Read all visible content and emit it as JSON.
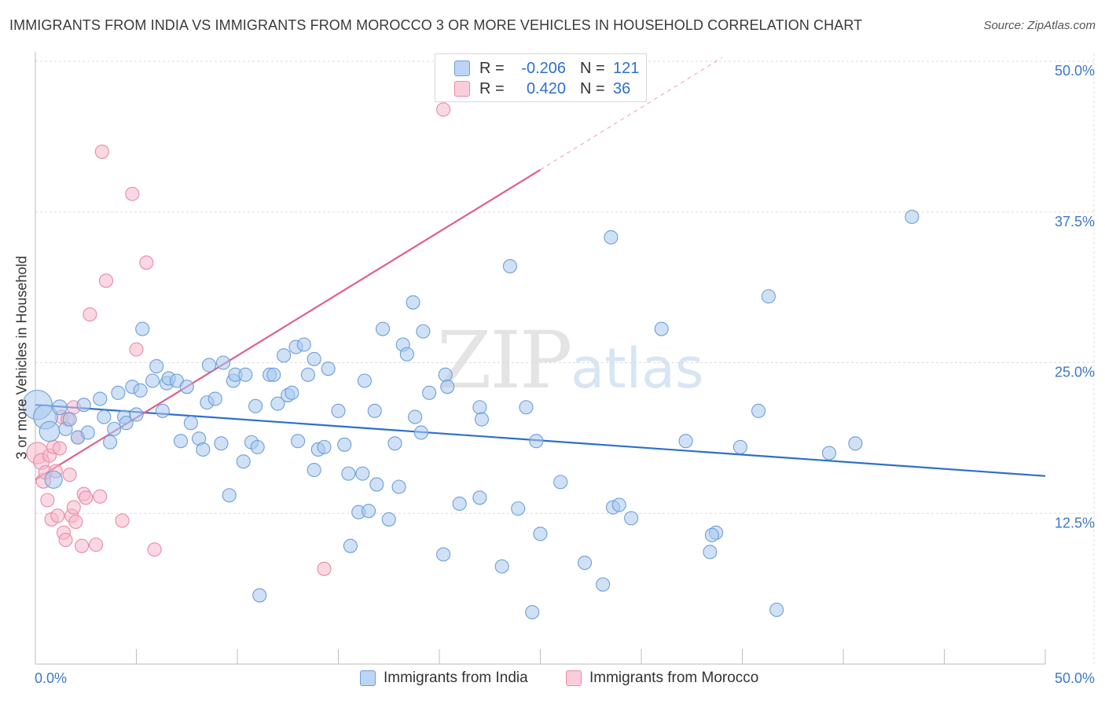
{
  "header": {
    "title": "IMMIGRANTS FROM INDIA VS IMMIGRANTS FROM MOROCCO 3 OR MORE VEHICLES IN HOUSEHOLD CORRELATION CHART",
    "source": "Source: ZipAtlas.com"
  },
  "legend": {
    "india": {
      "r_label": "R =",
      "r_value": "-0.206",
      "n_label": "N =",
      "n_value": "121"
    },
    "morocco": {
      "r_label": "R =",
      "r_value": "0.420",
      "n_label": "N =",
      "n_value": "36"
    }
  },
  "bottom_legend": {
    "india": "Immigrants from India",
    "morocco": "Immigrants from Morocco"
  },
  "watermark": {
    "part1": "ZIP",
    "part2": "atlas"
  },
  "colors": {
    "india_fill": "#a9c8ee",
    "india_stroke": "#6b9fd8",
    "india_line": "#2d6fcc",
    "morocco_fill": "#f6b8cb",
    "morocco_stroke": "#e98aa8",
    "morocco_line": "#e0608a",
    "axis_label": "#3d78c9",
    "grid": "#dcdcdc"
  },
  "chart_data": {
    "type": "scatter",
    "title": "IMMIGRANTS FROM INDIA VS IMMIGRANTS FROM MOROCCO 3 OR MORE VEHICLES IN HOUSEHOLD CORRELATION CHART",
    "xlabel": "",
    "ylabel": "3 or more Vehicles in Household",
    "xlim": [
      0,
      50
    ],
    "ylim": [
      0,
      50
    ],
    "x_tick_labels": [
      "0.0%",
      "50.0%"
    ],
    "y_ticks": [
      12.5,
      25.0,
      37.5,
      50.0
    ],
    "y_tick_labels": [
      "12.5%",
      "25.0%",
      "37.5%",
      "50.0%"
    ],
    "grid": true,
    "legend_position": "top-center",
    "series": [
      {
        "name": "Immigrants from India",
        "r": -0.206,
        "n": 121,
        "trend": {
          "x": [
            0,
            50
          ],
          "y": [
            21.5,
            15.6
          ]
        },
        "points": [
          [
            0.1,
            21.5,
            2.2
          ],
          [
            0.5,
            20.5,
            1.8
          ],
          [
            0.7,
            19.3,
            1.5
          ],
          [
            0.9,
            15.3,
            1.3
          ],
          [
            1.2,
            21.3,
            1.1
          ],
          [
            1.5,
            19.5,
            1.0
          ],
          [
            1.7,
            20.3,
            1.0
          ],
          [
            2.1,
            18.8,
            1.0
          ],
          [
            2.4,
            21.5,
            1.0
          ],
          [
            2.6,
            19.2,
            1.0
          ],
          [
            3.2,
            22.0,
            1.0
          ],
          [
            3.4,
            20.5,
            1.0
          ],
          [
            3.7,
            18.4,
            1.0
          ],
          [
            3.9,
            19.5,
            1.0
          ],
          [
            4.1,
            22.5,
            1.0
          ],
          [
            4.4,
            20.5,
            1.0
          ],
          [
            4.5,
            20.0,
            1.0
          ],
          [
            4.8,
            23.0,
            1.0
          ],
          [
            5.0,
            20.7,
            1.0
          ],
          [
            5.2,
            22.7,
            1.0
          ],
          [
            5.3,
            27.8,
            1.0
          ],
          [
            5.8,
            23.5,
            1.0
          ],
          [
            6.0,
            24.7,
            1.0
          ],
          [
            6.3,
            21.0,
            1.0
          ],
          [
            6.5,
            23.3,
            1.0
          ],
          [
            6.6,
            23.7,
            1.0
          ],
          [
            7.0,
            23.5,
            1.0
          ],
          [
            7.2,
            18.5,
            1.0
          ],
          [
            7.5,
            23.0,
            1.0
          ],
          [
            7.7,
            20.0,
            1.0
          ],
          [
            8.1,
            18.7,
            1.0
          ],
          [
            8.3,
            17.8,
            1.0
          ],
          [
            8.5,
            21.7,
            1.0
          ],
          [
            8.6,
            24.8,
            1.0
          ],
          [
            8.9,
            22.0,
            1.0
          ],
          [
            9.2,
            18.3,
            1.0
          ],
          [
            9.3,
            25.0,
            1.0
          ],
          [
            9.6,
            14.0,
            1.0
          ],
          [
            9.8,
            23.5,
            1.0
          ],
          [
            9.9,
            24.0,
            1.0
          ],
          [
            10.3,
            16.8,
            1.0
          ],
          [
            10.4,
            24.0,
            1.0
          ],
          [
            10.7,
            18.4,
            1.0
          ],
          [
            10.9,
            21.4,
            1.0
          ],
          [
            11.0,
            18.0,
            1.0
          ],
          [
            11.1,
            5.7,
            1.0
          ],
          [
            11.6,
            24.0,
            1.0
          ],
          [
            11.8,
            24.0,
            1.0
          ],
          [
            12.0,
            21.6,
            1.0
          ],
          [
            12.3,
            25.6,
            1.0
          ],
          [
            12.5,
            22.3,
            1.0
          ],
          [
            12.7,
            22.5,
            1.0
          ],
          [
            12.9,
            26.3,
            1.0
          ],
          [
            13.0,
            18.5,
            1.0
          ],
          [
            13.3,
            26.5,
            1.0
          ],
          [
            13.5,
            24.0,
            1.0
          ],
          [
            13.8,
            25.3,
            1.0
          ],
          [
            13.8,
            16.1,
            1.0
          ],
          [
            14.0,
            17.8,
            1.0
          ],
          [
            14.3,
            18.0,
            1.0
          ],
          [
            14.5,
            24.5,
            1.0
          ],
          [
            15.0,
            21.0,
            1.0
          ],
          [
            15.3,
            18.2,
            1.0
          ],
          [
            15.5,
            15.8,
            1.0
          ],
          [
            15.6,
            9.8,
            1.0
          ],
          [
            16.0,
            12.6,
            1.0
          ],
          [
            16.2,
            15.8,
            1.0
          ],
          [
            16.3,
            23.5,
            1.0
          ],
          [
            16.5,
            12.7,
            1.0
          ],
          [
            16.8,
            21.0,
            1.0
          ],
          [
            16.9,
            14.9,
            1.0
          ],
          [
            17.2,
            27.8,
            1.0
          ],
          [
            17.5,
            12.0,
            1.0
          ],
          [
            17.8,
            18.3,
            1.0
          ],
          [
            18.0,
            14.7,
            1.0
          ],
          [
            18.2,
            26.5,
            1.0
          ],
          [
            18.4,
            25.7,
            1.0
          ],
          [
            18.7,
            30.0,
            1.0
          ],
          [
            18.8,
            20.5,
            1.0
          ],
          [
            19.1,
            19.2,
            1.0
          ],
          [
            19.2,
            27.6,
            1.0
          ],
          [
            19.5,
            22.5,
            1.0
          ],
          [
            20.2,
            9.1,
            1.0
          ],
          [
            20.3,
            24.0,
            1.0
          ],
          [
            20.4,
            23.0,
            1.0
          ],
          [
            21.0,
            13.3,
            1.0
          ],
          [
            22.0,
            13.8,
            1.0
          ],
          [
            22.0,
            21.3,
            1.0
          ],
          [
            22.1,
            20.3,
            1.0
          ],
          [
            23.1,
            8.1,
            1.0
          ],
          [
            23.5,
            33.0,
            1.0
          ],
          [
            23.9,
            12.9,
            1.0
          ],
          [
            24.3,
            21.3,
            1.0
          ],
          [
            24.6,
            4.3,
            1.0
          ],
          [
            24.8,
            18.5,
            1.0
          ],
          [
            25.0,
            10.8,
            1.0
          ],
          [
            26.0,
            15.1,
            1.0
          ],
          [
            27.2,
            8.4,
            1.0
          ],
          [
            28.1,
            6.6,
            1.0
          ],
          [
            28.5,
            35.4,
            1.0
          ],
          [
            28.6,
            13.0,
            1.0
          ],
          [
            28.9,
            13.2,
            1.0
          ],
          [
            29.5,
            12.1,
            1.0
          ],
          [
            31.0,
            27.8,
            1.0
          ],
          [
            32.2,
            18.5,
            1.0
          ],
          [
            33.4,
            9.3,
            1.0
          ],
          [
            33.7,
            10.9,
            1.0
          ],
          [
            34.9,
            18.0,
            1.0
          ],
          [
            35.8,
            21.0,
            1.0
          ],
          [
            36.3,
            30.5,
            1.0
          ],
          [
            36.7,
            4.5,
            1.0
          ],
          [
            39.3,
            17.5,
            1.0
          ],
          [
            40.6,
            18.3,
            1.0
          ],
          [
            43.4,
            37.1,
            1.0
          ],
          [
            33.5,
            10.7,
            1.0
          ],
          [
            36.8,
            30.5,
            0.0
          ]
        ]
      },
      {
        "name": "Immigrants from Morocco",
        "r": 0.42,
        "n": 36,
        "trend": {
          "x": [
            0,
            25
          ],
          "y": [
            15.3,
            41.0
          ]
        },
        "trend_dashed": {
          "x": [
            25,
            34
          ],
          "y": [
            41.0,
            50.3
          ]
        },
        "points": [
          [
            0.1,
            17.5,
            1.6
          ],
          [
            0.3,
            16.8,
            1.2
          ],
          [
            0.4,
            15.2,
            1.1
          ],
          [
            0.5,
            15.9,
            1.0
          ],
          [
            0.6,
            13.6,
            1.0
          ],
          [
            0.7,
            17.3,
            1.0
          ],
          [
            0.8,
            12.0,
            1.0
          ],
          [
            0.9,
            18.0,
            1.0
          ],
          [
            1.0,
            16.0,
            1.0
          ],
          [
            1.1,
            12.3,
            1.0
          ],
          [
            1.3,
            20.5,
            1.0
          ],
          [
            1.4,
            10.9,
            1.0
          ],
          [
            1.5,
            10.3,
            1.0
          ],
          [
            1.6,
            20.3,
            1.0
          ],
          [
            1.7,
            15.7,
            1.0
          ],
          [
            1.8,
            12.3,
            1.0
          ],
          [
            1.9,
            13.0,
            1.0
          ],
          [
            1.9,
            21.3,
            1.0
          ],
          [
            2.0,
            11.8,
            1.0
          ],
          [
            2.1,
            18.8,
            1.0
          ],
          [
            2.3,
            9.8,
            1.0
          ],
          [
            2.4,
            14.1,
            1.0
          ],
          [
            2.5,
            13.8,
            1.0
          ],
          [
            2.7,
            29.0,
            1.0
          ],
          [
            3.0,
            9.9,
            1.0
          ],
          [
            3.2,
            13.9,
            1.0
          ],
          [
            3.3,
            42.5,
            1.0
          ],
          [
            3.5,
            31.8,
            1.0
          ],
          [
            4.3,
            11.9,
            1.0
          ],
          [
            4.8,
            39.0,
            1.0
          ],
          [
            5.0,
            26.1,
            1.0
          ],
          [
            5.5,
            33.3,
            1.0
          ],
          [
            5.9,
            9.5,
            1.0
          ],
          [
            14.3,
            7.9,
            1.0
          ],
          [
            20.2,
            46.0,
            1.0
          ],
          [
            1.2,
            17.9,
            1.0
          ]
        ]
      }
    ]
  }
}
